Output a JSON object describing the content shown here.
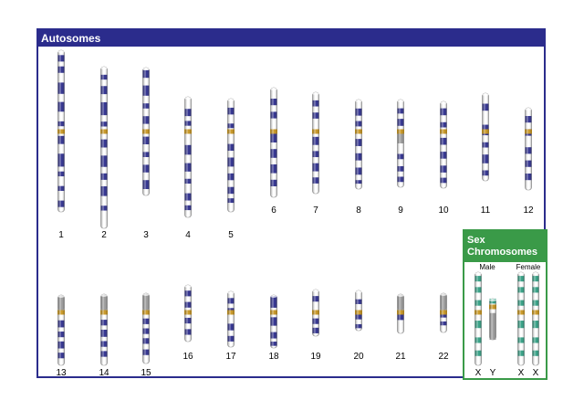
{
  "autosomes": {
    "title": "Autosomes",
    "chromosomes": [
      {
        "label": "1"
      },
      {
        "label": "2"
      },
      {
        "label": "3"
      },
      {
        "label": "4"
      },
      {
        "label": "5"
      },
      {
        "label": "6"
      },
      {
        "label": "7"
      },
      {
        "label": "8"
      },
      {
        "label": "9"
      },
      {
        "label": "10"
      },
      {
        "label": "11"
      },
      {
        "label": "12"
      },
      {
        "label": "13"
      },
      {
        "label": "14"
      },
      {
        "label": "15"
      },
      {
        "label": "16"
      },
      {
        "label": "17"
      },
      {
        "label": "18"
      },
      {
        "label": "19"
      },
      {
        "label": "20"
      },
      {
        "label": "21"
      },
      {
        "label": "22"
      }
    ]
  },
  "sex_chromosomes": {
    "title": "Sex\nChromosomes",
    "groups": [
      {
        "label": "Male",
        "chromosomes": [
          {
            "label": "X"
          },
          {
            "label": "Y"
          }
        ]
      },
      {
        "label": "Female",
        "chromosomes": [
          {
            "label": "X"
          },
          {
            "label": "X"
          }
        ]
      }
    ]
  },
  "colors": {
    "autosome_band": "#2b2c8c",
    "sex_band": "#2f9e82",
    "centromere": "#c8951e",
    "heterochromatin": "#9a9a9a",
    "autosome_frame": "#2b2c8c",
    "sex_frame": "#3a9a48"
  }
}
